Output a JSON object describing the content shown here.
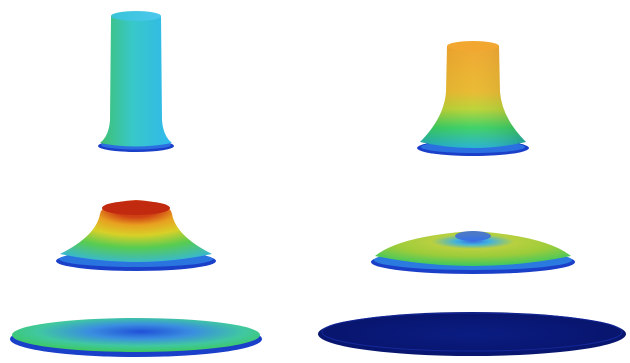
{
  "figure": {
    "panels": [
      {
        "id": "panel-1"
      },
      {
        "id": "panel-2"
      },
      {
        "id": "panel-3"
      },
      {
        "id": "panel-4"
      },
      {
        "id": "panel-5"
      },
      {
        "id": "panel-6"
      }
    ]
  },
  "colors": {
    "dark_blue": "#0b1a7a",
    "blue": "#1f4fd0",
    "cyan": "#3fc6e6",
    "green": "#4fd24a",
    "yellow": "#e6c21a",
    "orange": "#f0a020",
    "red": "#c42a12",
    "background": "#ffffff"
  }
}
